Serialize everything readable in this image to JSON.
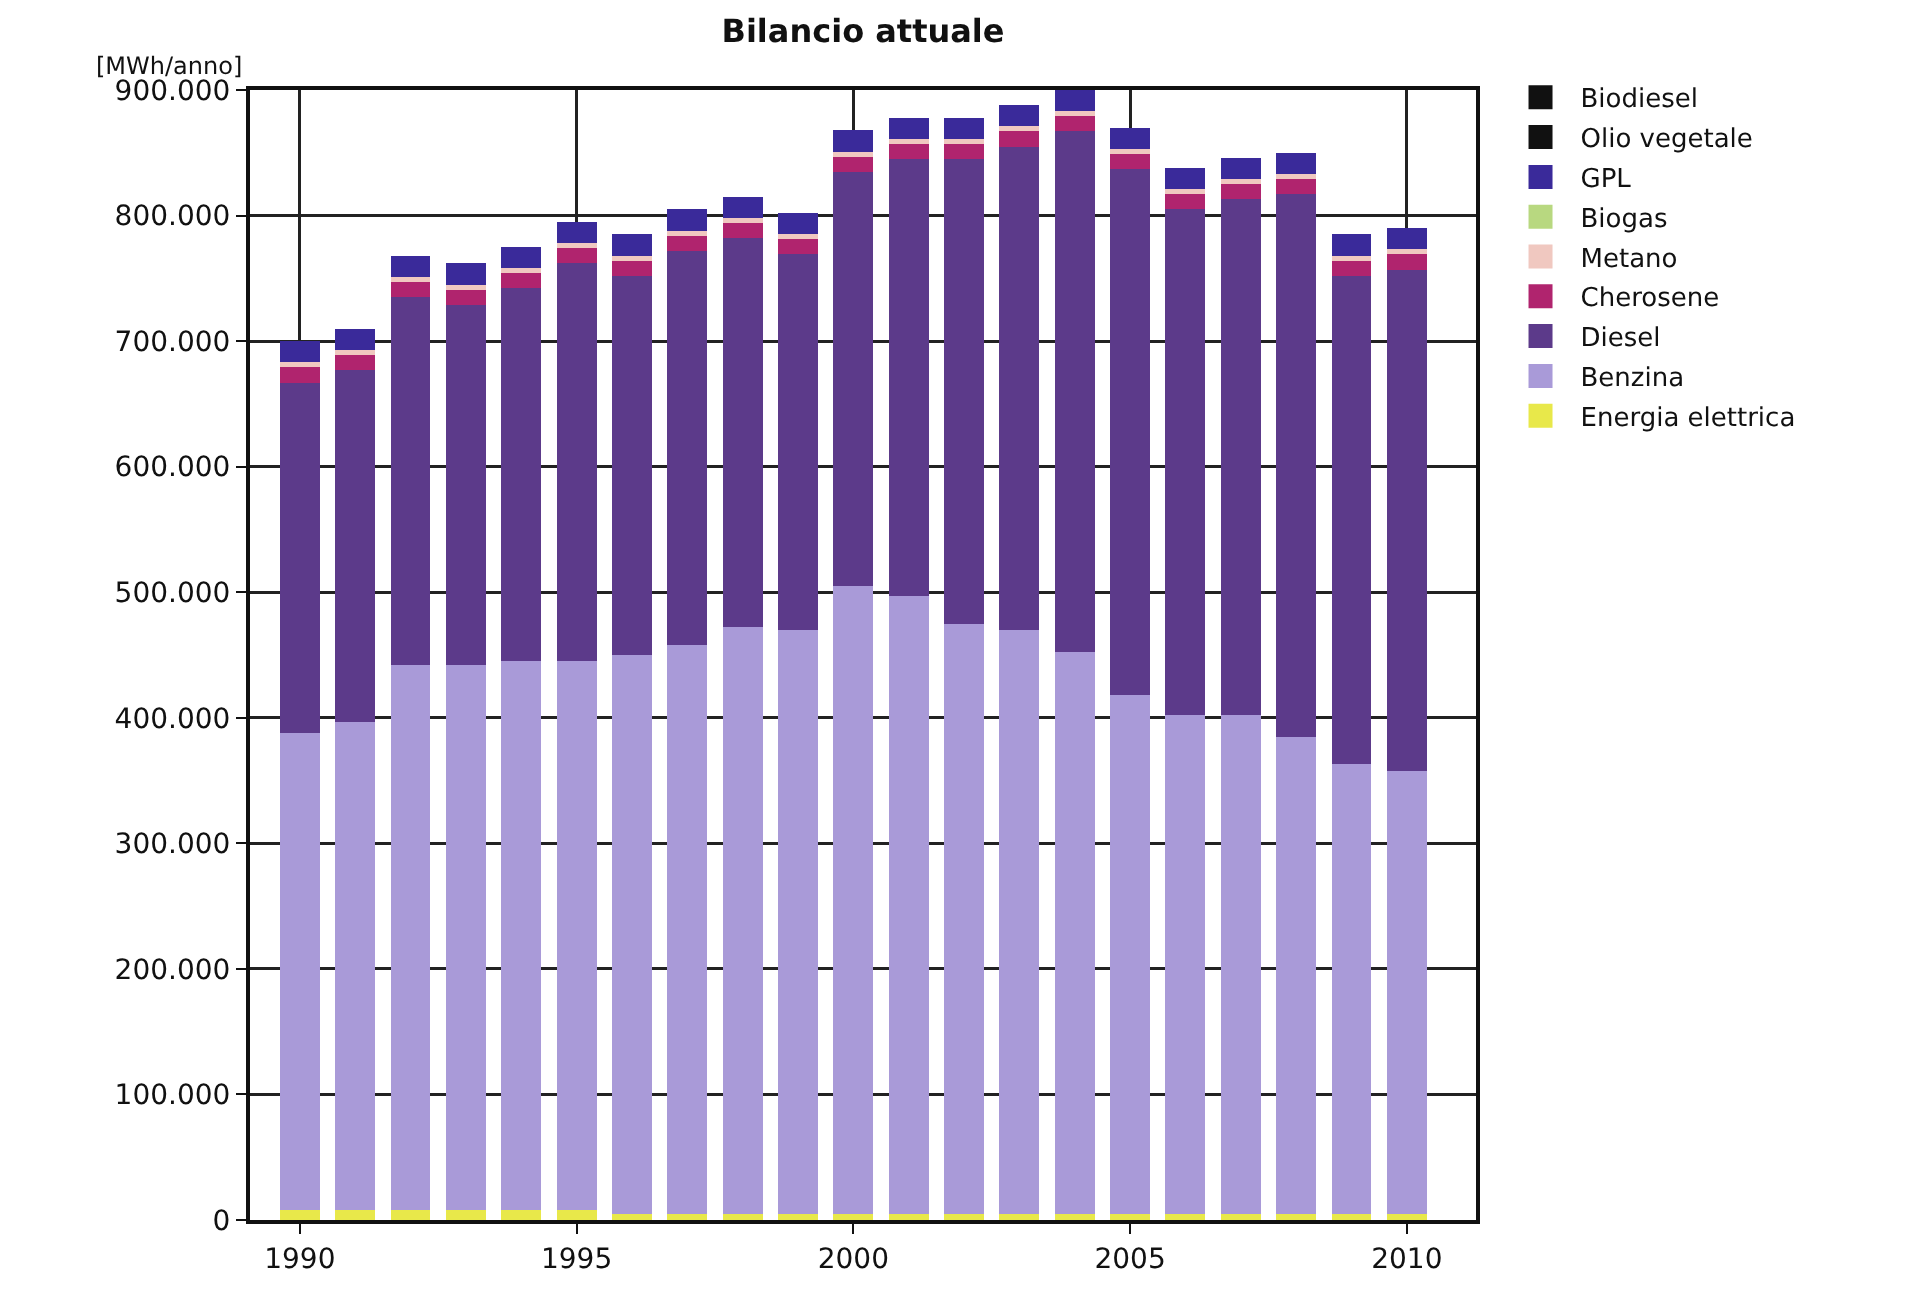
{
  "chart_data": {
    "type": "bar",
    "stacked": true,
    "title": "Bilancio attuale",
    "ylabel": "[MWh/anno]",
    "x": [
      1990,
      1991,
      1992,
      1993,
      1994,
      1995,
      1996,
      1997,
      1998,
      1999,
      2000,
      2001,
      2002,
      2003,
      2004,
      2005,
      2006,
      2007,
      2008,
      2009,
      2010
    ],
    "xlim": [
      1989.1,
      2011.25
    ],
    "xticks": [
      1990,
      1995,
      2000,
      2005,
      2010
    ],
    "ylim": [
      0,
      900000
    ],
    "yticks": [
      {
        "value": 0,
        "label": "0"
      },
      {
        "value": 100000,
        "label": "100.000"
      },
      {
        "value": 200000,
        "label": "200.000"
      },
      {
        "value": 300000,
        "label": "300.000"
      },
      {
        "value": 400000,
        "label": "400.000"
      },
      {
        "value": 500000,
        "label": "500.000"
      },
      {
        "value": 600000,
        "label": "600.000"
      },
      {
        "value": 700000,
        "label": "700.000"
      },
      {
        "value": 800000,
        "label": "800.000"
      },
      {
        "value": 900000,
        "label": "900.000"
      }
    ],
    "grid": true,
    "legend": "top right",
    "series": [
      {
        "name": "Energia elettrica",
        "color": "#e8e84a",
        "values": [
          8000,
          8000,
          8000,
          8000,
          8000,
          8000,
          5000,
          5000,
          5000,
          5000,
          5000,
          5000,
          5000,
          5000,
          5000,
          5000,
          5000,
          5000,
          5000,
          5000,
          5000
        ]
      },
      {
        "name": "Benzina",
        "color": "#a99ad8",
        "values": [
          380000,
          389000,
          434000,
          434000,
          437000,
          437000,
          445000,
          453000,
          467000,
          465000,
          500000,
          492000,
          470000,
          465000,
          447000,
          413000,
          397000,
          397000,
          380000,
          358000,
          353000
        ]
      },
      {
        "name": "Diesel",
        "color": "#5c3a8a",
        "values": [
          279000,
          280000,
          293000,
          287000,
          297000,
          317000,
          302000,
          314000,
          310000,
          299000,
          330000,
          348000,
          370000,
          385000,
          415000,
          419000,
          403000,
          411000,
          432000,
          389000,
          399000
        ]
      },
      {
        "name": "Cherosene",
        "color": "#b0246e",
        "values": [
          12000,
          12000,
          12000,
          12000,
          12000,
          12000,
          12000,
          12000,
          12000,
          12000,
          12000,
          12000,
          12000,
          12000,
          12000,
          12000,
          12000,
          12000,
          12000,
          12000,
          12000
        ]
      },
      {
        "name": "Metano",
        "color": "#f0c8c0",
        "values": [
          4000,
          4000,
          4000,
          4000,
          4000,
          4000,
          4000,
          4000,
          4000,
          4000,
          4000,
          4000,
          4000,
          4000,
          4000,
          4000,
          4000,
          4000,
          4000,
          4000,
          4000
        ]
      },
      {
        "name": "Biogas",
        "color": "#b8d880",
        "values": [
          0,
          0,
          0,
          0,
          0,
          0,
          0,
          0,
          0,
          0,
          0,
          0,
          0,
          0,
          0,
          0,
          0,
          0,
          0,
          0,
          0
        ]
      },
      {
        "name": "GPL",
        "color": "#3a2a9a",
        "values": [
          17000,
          17000,
          17000,
          17000,
          17000,
          17000,
          17000,
          17000,
          17000,
          17000,
          17000,
          17000,
          17000,
          17000,
          17000,
          17000,
          17000,
          17000,
          17000,
          17000,
          17000
        ]
      },
      {
        "name": "Olio vegetale",
        "color": "#111111",
        "values": [
          0,
          0,
          0,
          0,
          0,
          0,
          0,
          0,
          0,
          0,
          0,
          0,
          0,
          0,
          0,
          0,
          0,
          0,
          0,
          0,
          0
        ]
      },
      {
        "name": "Biodiesel",
        "color": "#111111",
        "values": [
          0,
          0,
          0,
          0,
          0,
          0,
          0,
          0,
          0,
          0,
          0,
          0,
          0,
          0,
          0,
          0,
          0,
          0,
          0,
          0,
          0
        ]
      }
    ]
  }
}
